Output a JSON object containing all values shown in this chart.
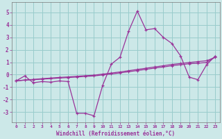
{
  "xlabel": "Windchill (Refroidissement éolien,°C)",
  "x_data": [
    0,
    1,
    2,
    3,
    4,
    5,
    6,
    7,
    8,
    9,
    10,
    11,
    12,
    13,
    14,
    15,
    16,
    17,
    18,
    19,
    20,
    21,
    22,
    23
  ],
  "y_main": [
    -0.5,
    -0.1,
    -0.65,
    -0.55,
    -0.6,
    -0.5,
    -0.55,
    -3.1,
    -3.1,
    -3.3,
    -0.85,
    0.85,
    1.4,
    3.5,
    5.1,
    3.6,
    3.7,
    3.0,
    2.5,
    1.5,
    -0.2,
    -0.4,
    0.8,
    1.5
  ],
  "y_line1": [
    -0.5,
    -0.42,
    -0.38,
    -0.32,
    -0.27,
    -0.22,
    -0.18,
    -0.13,
    -0.08,
    -0.04,
    0.05,
    0.13,
    0.22,
    0.32,
    0.42,
    0.52,
    0.62,
    0.72,
    0.82,
    0.9,
    0.98,
    1.05,
    1.12,
    1.4
  ],
  "y_line2": [
    -0.5,
    -0.44,
    -0.4,
    -0.36,
    -0.31,
    -0.27,
    -0.23,
    -0.19,
    -0.14,
    -0.1,
    -0.02,
    0.06,
    0.14,
    0.24,
    0.33,
    0.43,
    0.53,
    0.62,
    0.72,
    0.8,
    0.88,
    0.92,
    0.98,
    1.42
  ],
  "line_color": "#993399",
  "bg_color": "#cce8e8",
  "grid_color": "#99cccc",
  "ylim": [
    -3.8,
    5.8
  ],
  "xlim": [
    -0.5,
    23.5
  ],
  "yticks": [
    -3,
    -2,
    -1,
    0,
    1,
    2,
    3,
    4,
    5
  ],
  "xticks": [
    0,
    1,
    2,
    3,
    4,
    5,
    6,
    7,
    8,
    9,
    10,
    11,
    12,
    13,
    14,
    15,
    16,
    17,
    18,
    19,
    20,
    21,
    22,
    23
  ]
}
